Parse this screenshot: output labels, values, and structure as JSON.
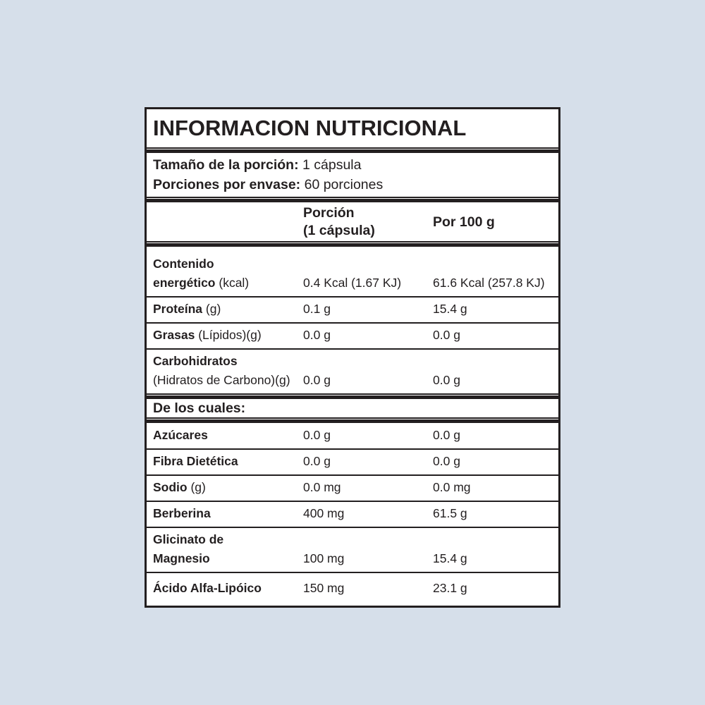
{
  "colors": {
    "page_background": "#d6dfea",
    "panel_background": "#ffffff",
    "ink": "#231f20"
  },
  "panel": {
    "title": "INFORMACION NUTRICIONAL",
    "serving_info": [
      {
        "label": "Tamaño de la porción:",
        "value": "1 cápsula"
      },
      {
        "label": "Porciones por envase:",
        "value": "60 porciones"
      }
    ],
    "column_headers": {
      "per_serving_line1": "Porción",
      "per_serving_line2": "(1 cápsula)",
      "per_100g": "Por 100 g"
    },
    "section_label": "De los cuales:",
    "main_rows": [
      {
        "label_lines": [
          {
            "bold": "Contenido",
            "regular": ""
          },
          {
            "bold": "energético",
            "regular": " (kcal)"
          }
        ],
        "per_serving": "0.4 Kcal (1.67 KJ)",
        "per_100g": "61.6 Kcal (257.8 KJ)"
      },
      {
        "label_lines": [
          {
            "bold": "Proteína",
            "regular": " (g)"
          }
        ],
        "per_serving": "0.1 g",
        "per_100g": "15.4 g"
      },
      {
        "label_lines": [
          {
            "bold": "Grasas",
            "regular": " (Lípidos)(g)"
          }
        ],
        "per_serving": "0.0 g",
        "per_100g": "0.0 g"
      },
      {
        "label_lines": [
          {
            "bold": "Carbohidratos",
            "regular": ""
          },
          {
            "bold": "",
            "regular": "(Hidratos de Carbono)(g)"
          }
        ],
        "per_serving": "0.0 g",
        "per_100g": "0.0 g"
      }
    ],
    "detail_rows": [
      {
        "label_lines": [
          {
            "bold": "Azúcares",
            "regular": ""
          }
        ],
        "per_serving": "0.0 g",
        "per_100g": "0.0 g"
      },
      {
        "label_lines": [
          {
            "bold": "Fibra Dietética",
            "regular": ""
          }
        ],
        "per_serving": "0.0 g",
        "per_100g": "0.0 g"
      },
      {
        "label_lines": [
          {
            "bold": "Sodio",
            "regular": " (g)"
          }
        ],
        "per_serving": "0.0 mg",
        "per_100g": "0.0 mg"
      },
      {
        "label_lines": [
          {
            "bold": "Berberina",
            "regular": ""
          }
        ],
        "per_serving": "400 mg",
        "per_100g": "61.5 g"
      },
      {
        "label_lines": [
          {
            "bold": "Glicinato de",
            "regular": ""
          },
          {
            "bold": "Magnesio",
            "regular": ""
          }
        ],
        "per_serving": "100 mg",
        "per_100g": "15.4 g"
      },
      {
        "label_lines": [
          {
            "bold": "Ácido Alfa-Lipóico",
            "regular": ""
          }
        ],
        "per_serving": "150 mg",
        "per_100g": "23.1 g"
      }
    ]
  }
}
